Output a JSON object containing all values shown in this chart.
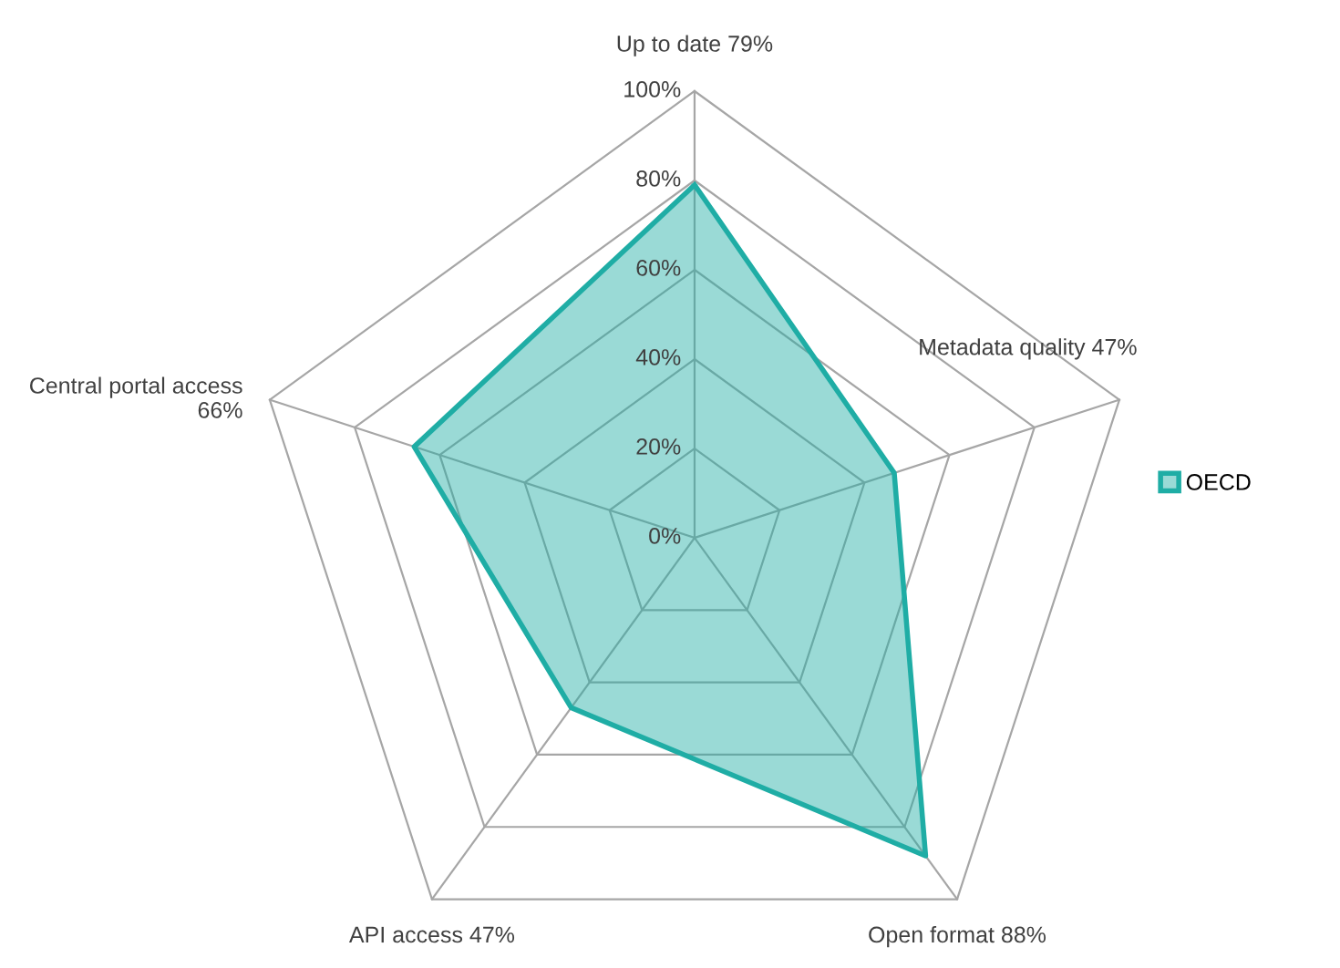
{
  "chart_data": {
    "type": "radar",
    "categories": [
      "Up to date 79%",
      "Metadata quality 47%",
      "Open format 88%",
      "API access 47%",
      "Central portal access\n66%"
    ],
    "series": [
      {
        "name": "OECD",
        "color": "#1fada5",
        "values": [
          79,
          47,
          88,
          47,
          66
        ]
      }
    ],
    "ylim": [
      0,
      100
    ],
    "yticks": [
      {
        "value": 0,
        "label": "0%"
      },
      {
        "value": 20,
        "label": "20%"
      },
      {
        "value": 40,
        "label": "40%"
      },
      {
        "value": 60,
        "label": "60%"
      },
      {
        "value": 80,
        "label": "80%"
      },
      {
        "value": 100,
        "label": "100%"
      }
    ],
    "grid": true,
    "legend": "right",
    "marker": "none"
  }
}
